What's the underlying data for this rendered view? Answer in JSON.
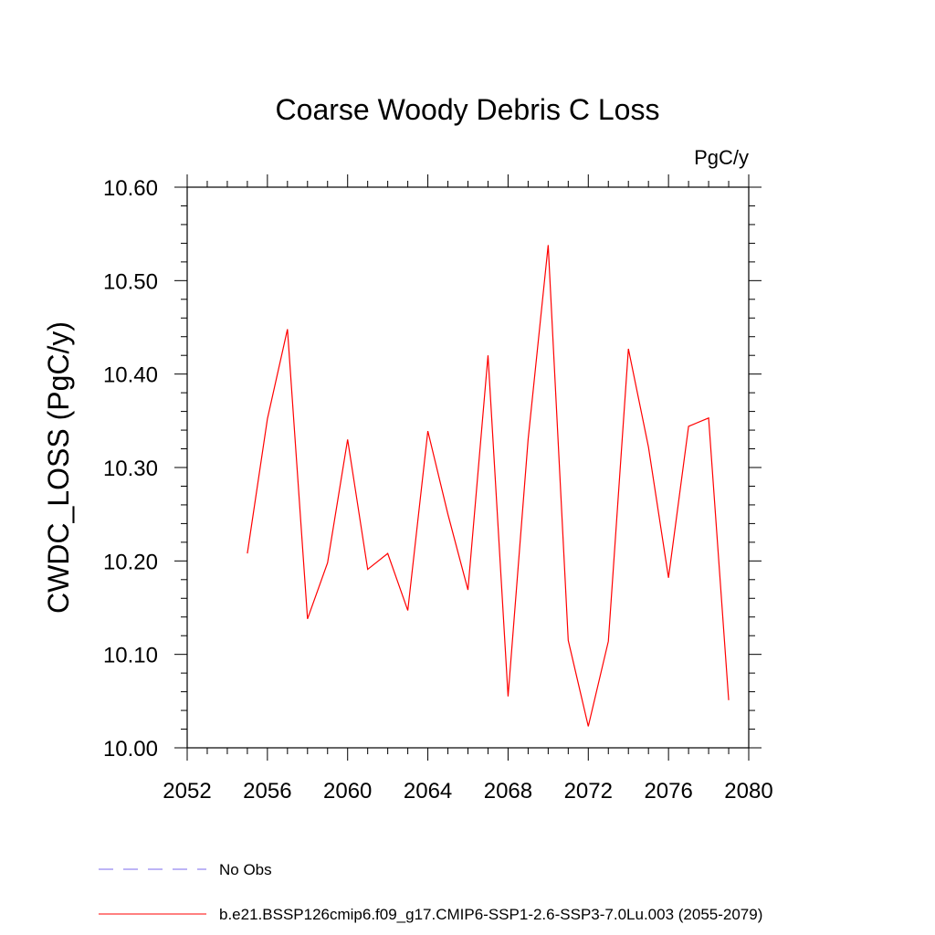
{
  "chart_data": {
    "type": "line",
    "title": "Coarse Woody Debris C Loss",
    "units_label": "PgC/y",
    "xlabel": "",
    "ylabel": "CWDC_LOSS  (PgC/y)",
    "xlim": [
      2052,
      2080
    ],
    "ylim": [
      10.0,
      10.6
    ],
    "x_ticks": [
      2052,
      2056,
      2060,
      2064,
      2068,
      2072,
      2076,
      2080
    ],
    "x_tick_labels": [
      "2052",
      "2056",
      "2060",
      "2064",
      "2068",
      "2072",
      "2076",
      "2080"
    ],
    "y_ticks": [
      10.0,
      10.1,
      10.2,
      10.3,
      10.4,
      10.5,
      10.6
    ],
    "y_tick_labels": [
      "10.00",
      "10.10",
      "10.20",
      "10.30",
      "10.40",
      "10.50",
      "10.60"
    ],
    "grid": false,
    "legend_position": "bottom",
    "series": [
      {
        "name": "b.e21.BSSP126cmip6.f09_g17.CMIP6-SSP1-2.6-SSP3-7.0Lu.003 (2055-2079)",
        "color": "#ff0000",
        "style": "solid",
        "x": [
          2055,
          2056,
          2057,
          2058,
          2059,
          2060,
          2061,
          2062,
          2063,
          2064,
          2065,
          2066,
          2067,
          2068,
          2069,
          2070,
          2071,
          2072,
          2073,
          2074,
          2075,
          2076,
          2077,
          2078,
          2079
        ],
        "y": [
          10.208,
          10.352,
          10.448,
          10.138,
          10.198,
          10.33,
          10.191,
          10.208,
          10.147,
          10.339,
          10.25,
          10.169,
          10.42,
          10.055,
          10.33,
          10.538,
          10.115,
          10.023,
          10.114,
          10.427,
          10.322,
          10.182,
          10.344,
          10.353,
          10.051
        ]
      },
      {
        "name": "No Obs",
        "color": "#7b68ee",
        "style": "dashed",
        "x": [],
        "y": []
      }
    ]
  }
}
